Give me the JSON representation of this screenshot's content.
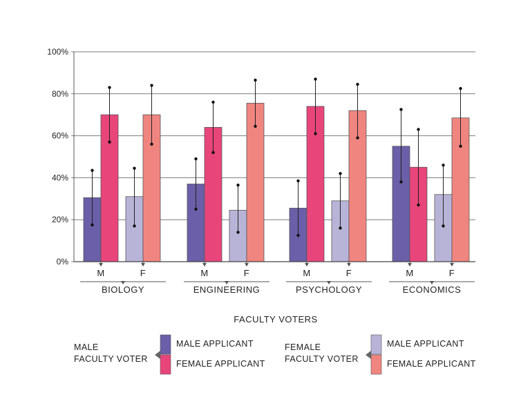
{
  "chart_data": {
    "type": "bar",
    "title": "",
    "xlabel": "FACULTY VOTERS",
    "ylabel": "",
    "ylim": [
      0,
      100
    ],
    "yticks": [
      "0%",
      "20%",
      "40%",
      "60%",
      "80%",
      "100%"
    ],
    "grid": true,
    "categories": [
      "BIOLOGY",
      "ENGINEERING",
      "PSYCHOLOGY",
      "ECONOMICS"
    ],
    "voter_groups": [
      "M",
      "F"
    ],
    "series": [
      {
        "name": "MALE APPLICANT",
        "voter": "M",
        "color": "#6a5fa8",
        "values": [
          30.5,
          37,
          25.5,
          55
        ],
        "err_low": [
          17.5,
          25,
          12.5,
          38
        ],
        "err_high": [
          43.5,
          49,
          38.5,
          72.5
        ]
      },
      {
        "name": "FEMALE APPLICANT",
        "voter": "M",
        "color": "#e8457a",
        "values": [
          70,
          64,
          74,
          45
        ],
        "err_low": [
          57,
          52,
          61,
          27
        ],
        "err_high": [
          83,
          76,
          87,
          63
        ]
      },
      {
        "name": "MALE APPLICANT",
        "voter": "F",
        "color": "#b8b4d8",
        "values": [
          31,
          24.5,
          29,
          32
        ],
        "err_low": [
          17,
          14,
          16,
          17
        ],
        "err_high": [
          44.5,
          36.5,
          42,
          46
        ]
      },
      {
        "name": "FEMALE APPLICANT",
        "voter": "F",
        "color": "#f08580",
        "values": [
          70,
          75.5,
          72,
          68.5
        ],
        "err_low": [
          56,
          64.5,
          59,
          55
        ],
        "err_high": [
          84,
          86.5,
          84.5,
          82.5
        ]
      }
    ],
    "legend": {
      "groups": [
        {
          "title_lines": [
            "MALE",
            "FACULTY VOTER"
          ],
          "items": [
            {
              "label": "MALE APPLICANT",
              "color": "#6a5fa8"
            },
            {
              "label": "FEMALE APPLICANT",
              "color": "#e8457a"
            }
          ]
        },
        {
          "title_lines": [
            "FEMALE",
            "FACULTY VOTER"
          ],
          "items": [
            {
              "label": "MALE APPLICANT",
              "color": "#b8b4d8"
            },
            {
              "label": "FEMALE APPLICANT",
              "color": "#f08580"
            }
          ]
        }
      ],
      "placement": "bottom"
    }
  }
}
